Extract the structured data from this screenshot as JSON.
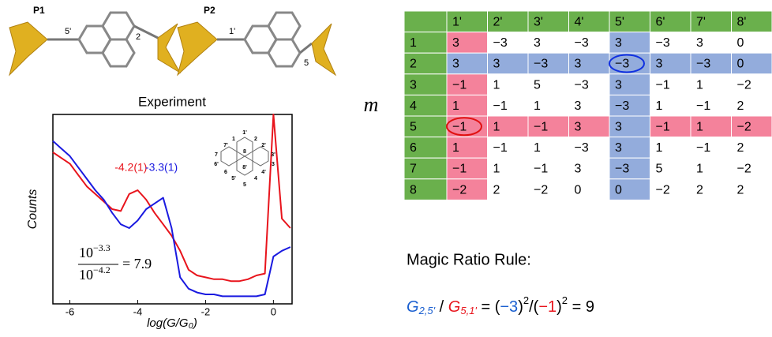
{
  "molecules": {
    "p1": {
      "label": "P1",
      "sites": [
        "5'",
        "2"
      ]
    },
    "p2": {
      "label": "P2",
      "sites": [
        "1'",
        "5"
      ]
    }
  },
  "chart_data": {
    "type": "line",
    "title": "Experiment",
    "x_label": "log(G/G₀)",
    "y_label": "Counts",
    "x": [
      -6.5,
      -6.25,
      -6,
      -5.75,
      -5.5,
      -5.25,
      -5,
      -4.75,
      -4.5,
      -4.25,
      -4,
      -3.75,
      -3.5,
      -3.25,
      -3,
      -2.75,
      -2.5,
      -2.25,
      -2,
      -1.75,
      -1.5,
      -1.25,
      -1,
      -0.75,
      -0.5,
      -0.25,
      0,
      0.25,
      0.5
    ],
    "series": [
      {
        "name": "P1",
        "color": "#e8141c",
        "values": [
          80,
          77,
          74,
          68,
          62,
          58,
          54,
          50,
          49,
          58,
          60,
          55,
          48,
          42,
          36,
          28,
          18,
          15,
          14,
          13,
          13,
          12,
          12,
          13,
          15,
          16,
          100,
          45,
          40
        ]
      },
      {
        "name": "P2",
        "color": "#1a1ae0",
        "values": [
          86,
          82,
          78,
          72,
          66,
          60,
          55,
          48,
          42,
          40,
          44,
          50,
          53,
          56,
          40,
          14,
          8,
          6,
          5,
          5,
          4,
          4,
          4,
          4,
          4,
          5,
          25,
          28,
          30
        ]
      }
    ],
    "xlim": [
      -6.5,
      0.55
    ],
    "ylim": [
      0,
      100
    ],
    "xticks": [
      -6,
      -4,
      -2,
      0
    ],
    "annotations": [
      {
        "text": "-4.2(1)",
        "x": -4.2,
        "color": "#e8141c"
      },
      {
        "text": "-3.3(1)",
        "x": -3.3,
        "color": "#1a1ae0"
      }
    ],
    "ratio": {
      "num": "10",
      "num_exp": "−3.3",
      "den": "10",
      "den_exp": "−4.2",
      "result": "= 7.9"
    },
    "inset_labels": [
      "1'",
      "1",
      "2",
      "7'",
      "2'",
      "7",
      "3'",
      "8",
      "6'",
      "3",
      "8'",
      "6",
      "4'",
      "5'",
      "4",
      "5"
    ]
  },
  "matrix": {
    "symbol": "m",
    "columns": [
      "1'",
      "2'",
      "3'",
      "4'",
      "5'",
      "6'",
      "7'",
      "8'"
    ],
    "rows": [
      [
        "1",
        "3",
        "−3",
        "3",
        "−3",
        "3",
        "−3",
        "3",
        "0"
      ],
      [
        "2",
        "3",
        "3",
        "−3",
        "3",
        "−3",
        "3",
        "−3",
        "0"
      ],
      [
        "3",
        "−1",
        "1",
        "5",
        "−3",
        "3",
        "−1",
        "1",
        "−2"
      ],
      [
        "4",
        "1",
        "−1",
        "1",
        "3",
        "−3",
        "1",
        "−1",
        "2"
      ],
      [
        "5",
        "−1",
        "1",
        "−1",
        "3",
        "3",
        "−1",
        "1",
        "−2"
      ],
      [
        "6",
        "1",
        "−1",
        "1",
        "−3",
        "3",
        "1",
        "−1",
        "2"
      ],
      [
        "7",
        "−1",
        "1",
        "−1",
        "3",
        "−3",
        "5",
        "1",
        "−2"
      ],
      [
        "8",
        "−2",
        "2",
        "−2",
        "0",
        "0",
        "−2",
        "2",
        "2"
      ]
    ]
  },
  "rule": {
    "title": "Magic Ratio Rule:",
    "formula": [
      "G",
      "2,5'",
      " / ",
      "G",
      "5,1'",
      " = (",
      "−3",
      ")",
      "2",
      "/(",
      "−1",
      ")",
      "2",
      " = 9"
    ]
  }
}
